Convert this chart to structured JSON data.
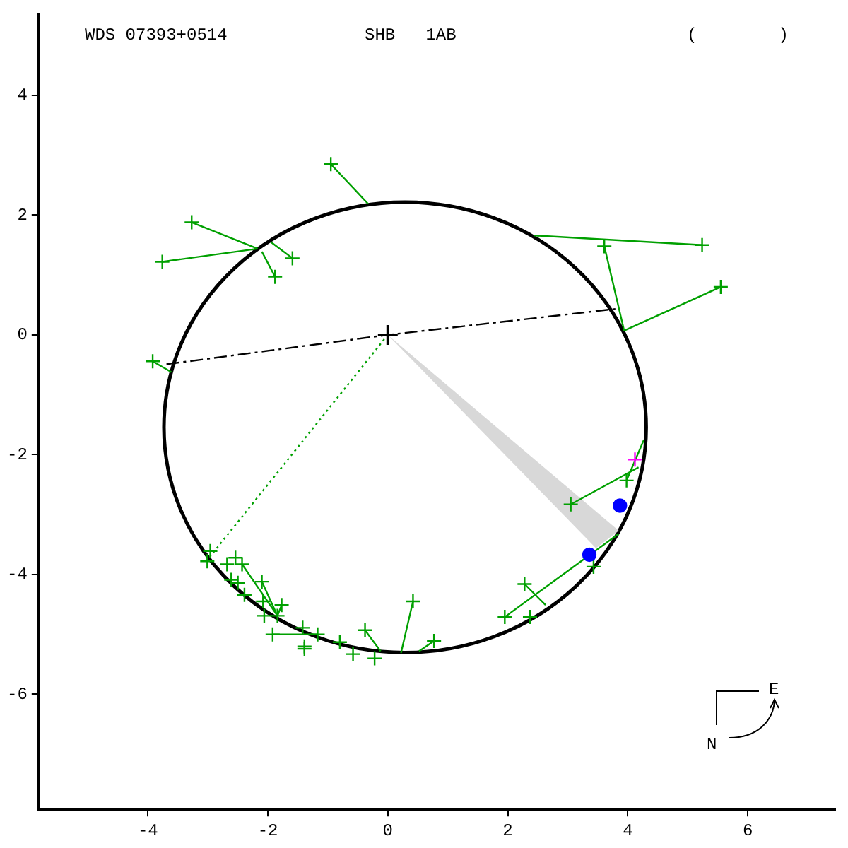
{
  "chart_data": {
    "type": "scatter",
    "title": "WDS 07393+0514",
    "subtitle": "SHB   1AB",
    "annotations": [
      "(        )",
      "N",
      "E"
    ],
    "xlim": [
      -5.82,
      7.46
    ],
    "ylim": [
      -7.92,
      5.35
    ],
    "xticks": [
      -4,
      -2,
      0,
      2,
      4,
      6
    ],
    "yticks": [
      -6,
      -4,
      -2,
      0,
      2,
      4
    ],
    "grid": false,
    "legend": false,
    "series": [
      {
        "type": "area",
        "color": "#d8d8d8",
        "x": [
          0,
          3.85,
          3.47,
          0
        ],
        "values": [
          0,
          -3.27,
          -3.56,
          0
        ]
      },
      {
        "type": "line",
        "color": "#000000",
        "line_style": "dashed",
        "x": [
          -3.69,
          0,
          3.85
        ],
        "values": [
          -0.49,
          0,
          0.44
        ]
      },
      {
        "type": "line",
        "color": "#00a000",
        "line_style": "dotted",
        "x": [
          0,
          -3.01
        ],
        "values": [
          0,
          -3.76
        ]
      },
      {
        "type": "line",
        "color": "#00a000",
        "line_style": "solid",
        "x": [
          -0.95,
          -0.33,
          null,
          -3.27,
          -2.17,
          null,
          -3.76,
          -2.17,
          null,
          -1.59,
          -1.95,
          null,
          -1.88,
          -2.1,
          null,
          -3.92,
          -3.61,
          null,
          5.24,
          2.43,
          null,
          3.61,
          3.94,
          null,
          5.55,
          3.94,
          null,
          3.98,
          4.27,
          null,
          3.05,
          4.18,
          null,
          2.28,
          2.63,
          null,
          1.95,
          3.85,
          null,
          -2.1,
          -1.84,
          null,
          -1.77,
          -1.84,
          null,
          -1.92,
          -1.17,
          null,
          0.42,
          0.22,
          null,
          0.77,
          0.52,
          null,
          -0.38,
          -0.12,
          null,
          -2.43,
          -1.84
        ],
        "values": [
          2.85,
          2.19,
          null,
          1.88,
          1.44,
          null,
          1.22,
          1.44,
          null,
          1.28,
          1.55,
          null,
          0.97,
          1.39,
          null,
          -0.44,
          -0.62,
          null,
          1.5,
          1.66,
          null,
          1.48,
          0.07,
          null,
          0.8,
          0.07,
          null,
          -2.43,
          -1.75,
          null,
          -2.83,
          -2.21,
          null,
          -4.16,
          -4.51,
          null,
          -4.71,
          -3.32,
          null,
          -4.12,
          -4.69,
          null,
          -4.51,
          -4.69,
          null,
          -5.0,
          -5.0,
          null,
          -4.45,
          -5.31,
          null,
          -5.11,
          -5.28,
          null,
          -4.93,
          -5.28,
          null,
          -3.83,
          -4.69
        ]
      },
      {
        "type": "scatter",
        "color": "#00a000",
        "marker": "cross",
        "x": [
          -0.95,
          -3.27,
          -3.76,
          -1.59,
          -1.88,
          -3.92,
          5.24,
          3.61,
          5.55,
          3.98,
          3.05,
          3.43,
          2.28,
          1.95,
          2.37,
          -2.96,
          -3.01,
          -2.68,
          -2.54,
          -2.43,
          -2.61,
          -2.5,
          -2.1,
          -2.39,
          -2.08,
          -1.77,
          -2.06,
          -1.84,
          -1.92,
          -1.42,
          -1.17,
          -1.39,
          -1.39,
          -0.8,
          -0.58,
          -0.38,
          -0.22,
          0.42,
          0.77
        ],
        "values": [
          2.85,
          1.88,
          1.22,
          1.28,
          0.97,
          -0.44,
          1.5,
          1.48,
          0.8,
          -2.43,
          -2.83,
          -3.87,
          -4.16,
          -4.71,
          -4.71,
          -3.61,
          -3.78,
          -3.83,
          -3.72,
          -3.83,
          -4.09,
          -4.14,
          -4.12,
          -4.34,
          -4.45,
          -4.51,
          -4.69,
          -4.69,
          -5.0,
          -4.89,
          -5.0,
          -5.2,
          -5.24,
          -5.13,
          -5.33,
          -4.93,
          -5.4,
          -4.45,
          -5.11
        ]
      },
      {
        "type": "scatter",
        "color": "#0000ff",
        "marker": "circle",
        "x": [
          3.87,
          3.36
        ],
        "values": [
          -2.85,
          -3.67
        ]
      },
      {
        "type": "scatter",
        "color": "#ff00ff",
        "marker": "cross",
        "x": [
          4.12
        ],
        "values": [
          -2.08
        ]
      },
      {
        "type": "scatter",
        "color": "#000000",
        "marker": "cross",
        "x": [
          0
        ],
        "values": [
          0
        ]
      }
    ]
  }
}
